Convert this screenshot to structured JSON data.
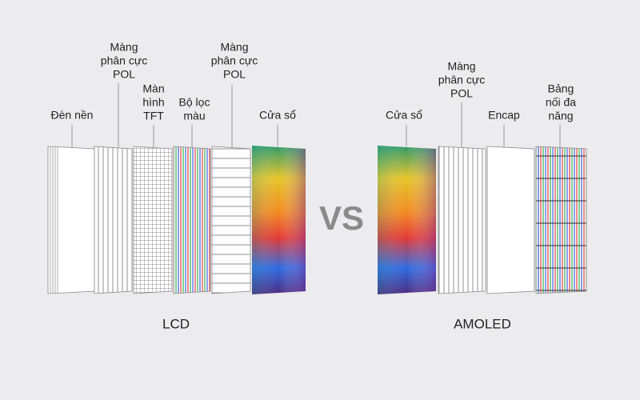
{
  "lcd": {
    "title": "LCD",
    "layers": [
      {
        "label": [
          "Đèn nền"
        ]
      },
      {
        "label": [
          "Màng",
          "phân cực",
          "POL"
        ]
      },
      {
        "label": [
          "Màn",
          "hình",
          "TFT"
        ]
      },
      {
        "label": [
          "Bộ lọc",
          "màu"
        ]
      },
      {
        "label": [
          "Màng",
          "phân cực",
          "POL"
        ]
      },
      {
        "label": [
          "Cửa sổ"
        ]
      }
    ]
  },
  "vs": "VS",
  "amoled": {
    "title": "AMOLED",
    "layers": [
      {
        "label": [
          "Cửa sổ"
        ]
      },
      {
        "label": [
          "Màng",
          "phân cực",
          "POL"
        ]
      },
      {
        "label": [
          "Encap"
        ]
      },
      {
        "label": [
          "Bảng",
          "nối đa",
          "năng"
        ]
      }
    ]
  }
}
